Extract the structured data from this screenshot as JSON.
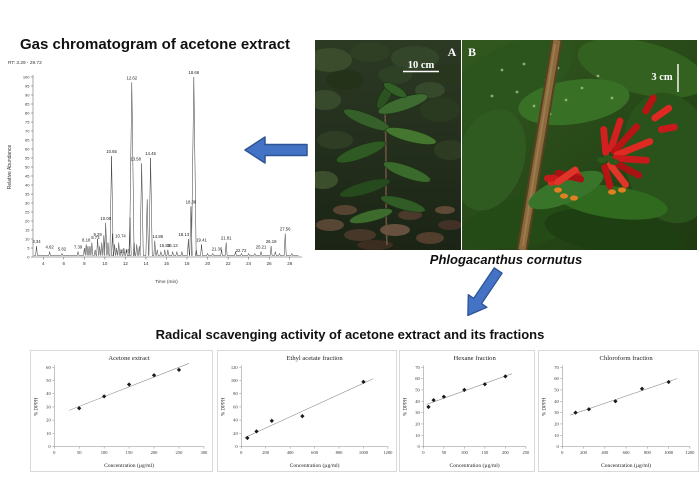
{
  "chromatogram": {
    "title": "Gas chromatogram of acetone extract",
    "rt_range": "RT: 3.29 - 29.72",
    "xlabel": "Time (min)",
    "ylabel": "Relative Abundance"
  },
  "plant": {
    "caption": "Phlogacanthus cornutus",
    "label_a": "A",
    "label_b": "B",
    "scale_a": "10 cm",
    "scale_b": "3 cm"
  },
  "bottom": {
    "title": "Radical scavenging activity of acetone extract and its fractions"
  },
  "colors": {
    "arrow_fill": "#4472C4",
    "arrow_border": "#2F5496",
    "trace": "#3a3a3a",
    "axis": "#888888",
    "marker": "#1a1a1a",
    "trendline": "#777777"
  },
  "chart_data": [
    {
      "type": "line",
      "name": "gc-chromatogram",
      "title": "Gas chromatogram of acetone extract",
      "header": "RT: 3.29 - 29.72",
      "xlabel": "Time (min)",
      "ylabel": "Relative Abundance",
      "xlim": [
        3,
        29
      ],
      "ylim": [
        0,
        100
      ],
      "xticks": [
        4,
        6,
        8,
        10,
        12,
        14,
        16,
        18,
        20,
        22,
        24,
        26,
        28
      ],
      "ytick_step": 5,
      "peaks": [
        {
          "t": 3.34,
          "h": 6,
          "label": "3.34"
        },
        {
          "t": 4.62,
          "h": 3,
          "label": "4.62"
        },
        {
          "t": 5.82,
          "h": 2,
          "label": "5.82"
        },
        {
          "t": 7.39,
          "h": 3,
          "label": "7.39"
        },
        {
          "t": 8.18,
          "h": 7,
          "label": "8.18"
        },
        {
          "t": 8.73,
          "h": 8,
          "label": "8.73"
        },
        {
          "t": 9.29,
          "h": 10,
          "label": "9.29"
        },
        {
          "t": 10.08,
          "h": 19,
          "label": "10.08"
        },
        {
          "t": 10.65,
          "h": 56,
          "label": "10.65"
        },
        {
          "t": 10.74,
          "h": 13,
          "label": "10.74"
        },
        {
          "t": 11.35,
          "h": 8,
          "label": "11.35"
        },
        {
          "t": 12.62,
          "h": 97,
          "label": "12.62"
        },
        {
          "t": 13.58,
          "h": 52,
          "label": "13.58"
        },
        {
          "t": 14.45,
          "h": 55,
          "label": "14.45"
        },
        {
          "t": 14.86,
          "h": 9,
          "label": "14.86"
        },
        {
          "t": 15.83,
          "h": 4,
          "label": "15.83"
        },
        {
          "t": 16.13,
          "h": 4,
          "label": "16.13"
        },
        {
          "t": 18.13,
          "h": 10,
          "label": "18.13"
        },
        {
          "t": 18.38,
          "h": 28,
          "label": "18.38"
        },
        {
          "t": 18.66,
          "h": 100,
          "label": "18.66"
        },
        {
          "t": 19.41,
          "h": 7,
          "label": "19.41"
        },
        {
          "t": 21.36,
          "h": 4,
          "label": "21.36"
        },
        {
          "t": 21.81,
          "h": 8,
          "label": "21.81"
        },
        {
          "t": 22.72,
          "h": 3,
          "label": "22.72"
        },
        {
          "t": 25.21,
          "h": 3,
          "label": "25.21"
        },
        {
          "t": 26.19,
          "h": 6,
          "label": "26.19"
        },
        {
          "t": 27.56,
          "h": 13,
          "label": "27.56"
        }
      ],
      "minor_peaks": [
        [
          8.0,
          5
        ],
        [
          8.35,
          6
        ],
        [
          8.55,
          6
        ],
        [
          9.05,
          4
        ],
        [
          9.5,
          6
        ],
        [
          9.7,
          8
        ],
        [
          9.9,
          12
        ],
        [
          10.3,
          8
        ],
        [
          10.95,
          7
        ],
        [
          11.15,
          5
        ],
        [
          11.6,
          4
        ],
        [
          11.85,
          5
        ],
        [
          12.1,
          4
        ],
        [
          12.45,
          22
        ],
        [
          12.85,
          8
        ],
        [
          13.1,
          7
        ],
        [
          13.35,
          6
        ],
        [
          14.12,
          32
        ],
        [
          15.1,
          4
        ],
        [
          15.45,
          3
        ],
        [
          16.6,
          3
        ],
        [
          17.0,
          3
        ],
        [
          17.5,
          3
        ],
        [
          18.9,
          4
        ],
        [
          20.0,
          2
        ],
        [
          20.5,
          2
        ],
        [
          23.3,
          2
        ],
        [
          24.0,
          2
        ],
        [
          24.6,
          2
        ],
        [
          26.6,
          3
        ],
        [
          27.0,
          2
        ],
        [
          28.2,
          2
        ]
      ]
    },
    {
      "type": "scatter",
      "name": "acetone-extract",
      "title": "Acetone extract",
      "xlabel": "Concentration (µg/ml)",
      "ylabel": "% DPPH",
      "xlim": [
        0,
        300
      ],
      "xtick": 50,
      "ylim": [
        0,
        60
      ],
      "ytick": 10,
      "x": [
        50,
        100,
        150,
        200,
        250
      ],
      "y": [
        29,
        38,
        47,
        54,
        58
      ],
      "trendline": true
    },
    {
      "type": "scatter",
      "name": "ethyl-acetate-fraction",
      "title": "Ethyl acetate fraction",
      "xlabel": "Concentration (µg/ml)",
      "ylabel": "% DPPH",
      "xlim": [
        0,
        1200
      ],
      "xtick": 200,
      "ylim": [
        0,
        120
      ],
      "ytick": 20,
      "x": [
        50,
        125,
        250,
        500,
        1000
      ],
      "y": [
        13,
        23,
        39,
        46,
        98
      ],
      "trendline": true
    },
    {
      "type": "scatter",
      "name": "hexane-fraction",
      "title": "Hexane fraction",
      "xlabel": "Concentration (µg/ml)",
      "ylabel": "% DPPH",
      "xlim": [
        0,
        250
      ],
      "xtick": 50,
      "ylim": [
        0,
        70
      ],
      "ytick": 10,
      "x": [
        12.5,
        25,
        50,
        100,
        150,
        200
      ],
      "y": [
        35,
        41,
        44,
        50,
        55,
        62
      ],
      "trendline": true
    },
    {
      "type": "scatter",
      "name": "chloroform-fraction",
      "title": "Chloroform fraction",
      "xlabel": "Concentration (µg/ml)",
      "ylabel": "% DPPH",
      "xlim": [
        0,
        1200
      ],
      "xtick": 200,
      "ylim": [
        0,
        70
      ],
      "ytick": 10,
      "x": [
        125,
        250,
        500,
        750,
        1000
      ],
      "y": [
        30,
        33,
        40,
        51,
        57
      ],
      "trendline": true
    }
  ]
}
